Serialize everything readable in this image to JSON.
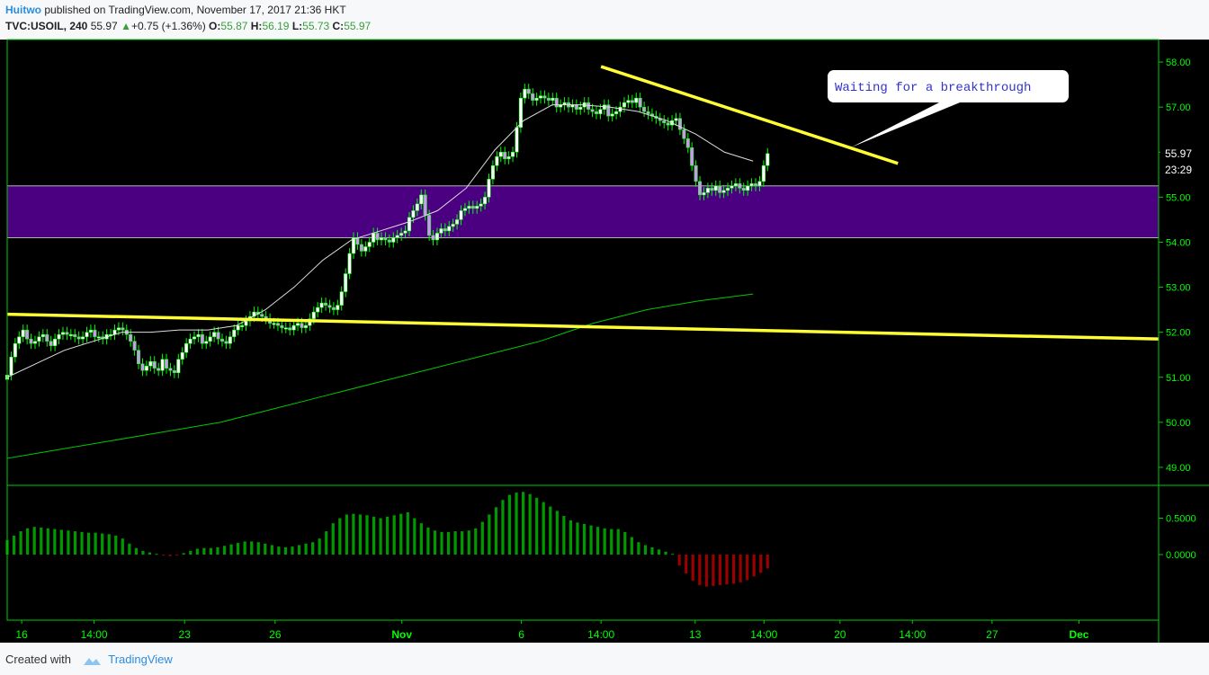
{
  "header": {
    "author": "Huitwo",
    "published_text": "published on TradingView.com, November 17, 2017 21:36 HKT",
    "symbol": "TVC:USOIL, 240",
    "last": "55.97",
    "change": "+0.75 (+1.36%)",
    "open_label": "O:",
    "open": "55.87",
    "high_label": "H:",
    "high": "56.19",
    "low_label": "L:",
    "low": "55.73",
    "close_label": "C:",
    "close": "55.97"
  },
  "footer": {
    "created_with": "Created with",
    "brand": "TradingView"
  },
  "colors": {
    "background": "#000000",
    "frame": "#00cc00",
    "axis_text": "#00ff00",
    "zone": "#4b0082",
    "trendline": "#ffff33",
    "ma_fast": "#dddddd",
    "ma_slow": "#00c800",
    "hist_pos": "#009900",
    "hist_neg": "#990000",
    "bull": "#ffffff",
    "bear": "#cc99ee"
  },
  "chart_data": [
    {
      "type": "candlestick",
      "ylim": [
        48.6,
        58.5
      ],
      "yticks": [
        49,
        50,
        51,
        52,
        53,
        54,
        55,
        56,
        57,
        58
      ],
      "ytick_labels": [
        "49.00",
        "50.00",
        "51.00",
        "52.00",
        "53.00",
        "54.00",
        "55.00",
        "56.00",
        "57.00",
        "58.00"
      ],
      "xtick_labels": [
        "16",
        "14:00",
        "23",
        "26",
        "Nov",
        "6",
        "14:00",
        "13",
        "14:00",
        "20",
        "14:00",
        "27",
        "Dec"
      ],
      "xtick_pos": [
        0,
        20,
        45,
        70,
        105,
        138,
        160,
        186,
        205,
        226,
        246,
        268,
        292
      ],
      "xlim": [
        -4,
        314
      ],
      "close_series": [
        51.05,
        51.45,
        51.75,
        51.9,
        52.05,
        51.85,
        51.75,
        51.8,
        51.9,
        51.95,
        51.8,
        51.7,
        51.85,
        51.95,
        52.0,
        51.95,
        51.95,
        51.9,
        51.85,
        51.9,
        52.0,
        52.05,
        51.9,
        51.9,
        51.85,
        51.95,
        51.95,
        52.05,
        52.1,
        52.05,
        51.95,
        51.8,
        51.6,
        51.3,
        51.15,
        51.25,
        51.35,
        51.2,
        51.15,
        51.4,
        51.2,
        51.15,
        51.1,
        51.4,
        51.55,
        51.75,
        51.85,
        51.9,
        51.95,
        51.75,
        51.8,
        51.9,
        52.0,
        51.85,
        51.8,
        51.75,
        51.9,
        52.05,
        52.15,
        52.15,
        52.25,
        52.35,
        52.45,
        52.4,
        52.35,
        52.3,
        52.2,
        52.2,
        52.15,
        52.1,
        52.1,
        52.05,
        52.15,
        52.2,
        52.1,
        52.15,
        52.3,
        52.45,
        52.55,
        52.65,
        52.6,
        52.55,
        52.5,
        52.6,
        52.9,
        53.3,
        53.75,
        54.1,
        53.95,
        53.8,
        53.9,
        54.0,
        54.2,
        54.05,
        54.1,
        54.05,
        54.0,
        54.1,
        54.15,
        54.2,
        54.25,
        54.55,
        54.7,
        54.85,
        55.05,
        54.6,
        54.15,
        54.05,
        54.2,
        54.3,
        54.25,
        54.35,
        54.4,
        54.5,
        54.7,
        54.75,
        54.8,
        54.75,
        54.8,
        54.85,
        55.0,
        55.4,
        55.7,
        55.9,
        56.0,
        55.85,
        55.9,
        56.0,
        56.55,
        57.2,
        57.4,
        57.3,
        57.15,
        57.2,
        57.25,
        57.2,
        57.15,
        57.2,
        57.0,
        57.05,
        57.1,
        57.0,
        57.05,
        56.95,
        57.0,
        57.1,
        56.95,
        56.9,
        56.85,
        56.95,
        57.05,
        56.8,
        56.85,
        56.9,
        57.0,
        57.1,
        57.15,
        57.1,
        57.2,
        57.0,
        56.9,
        56.85,
        56.8,
        56.75,
        56.7,
        56.65,
        56.6,
        56.7,
        56.75,
        56.5,
        56.3,
        56.1,
        55.7,
        55.35,
        55.05,
        55.1,
        55.2,
        55.15,
        55.25,
        55.1,
        55.15,
        55.2,
        55.25,
        55.3,
        55.2,
        55.15,
        55.25,
        55.3,
        55.25,
        55.35,
        55.7,
        55.97
      ],
      "ma_fast": [
        51.0,
        51.3,
        51.6,
        51.8,
        52.0,
        52.0,
        52.05,
        52.05,
        52.15,
        52.5,
        53.0,
        53.6,
        54.05,
        54.25,
        54.45,
        54.7,
        55.2,
        56.05,
        56.7,
        57.05,
        57.05,
        57.0,
        56.9,
        56.7,
        56.4,
        56.0,
        55.8
      ],
      "ma_slow": [
        49.2,
        49.4,
        49.6,
        49.8,
        50.0,
        50.3,
        50.6,
        50.9,
        51.2,
        51.5,
        51.8,
        52.2,
        52.5,
        52.7,
        52.85
      ],
      "zone": {
        "low": 54.1,
        "high": 55.25
      },
      "trendlines": [
        {
          "x1": -4,
          "y1": 52.4,
          "x2": 314,
          "y2": 51.85
        },
        {
          "x1": 160,
          "y1": 57.9,
          "x2": 242,
          "y2": 55.75
        }
      ],
      "last_price_label": "55.97",
      "countdown_label": "23:29",
      "annotation": "Waiting for a breakthrough"
    },
    {
      "type": "histogram",
      "ylim": [
        -0.9,
        0.95
      ],
      "yticks": [
        0,
        0.5
      ],
      "ytick_labels": [
        "0.0000",
        "0.5000"
      ],
      "values": [
        0.2,
        0.26,
        0.32,
        0.36,
        0.38,
        0.37,
        0.36,
        0.35,
        0.34,
        0.33,
        0.32,
        0.31,
        0.3,
        0.3,
        0.29,
        0.28,
        0.26,
        0.22,
        0.15,
        0.09,
        0.05,
        0.03,
        0.01,
        -0.01,
        -0.02,
        -0.01,
        0.02,
        0.05,
        0.08,
        0.09,
        0.09,
        0.1,
        0.12,
        0.14,
        0.16,
        0.18,
        0.18,
        0.17,
        0.15,
        0.13,
        0.11,
        0.1,
        0.11,
        0.13,
        0.15,
        0.17,
        0.22,
        0.32,
        0.43,
        0.5,
        0.55,
        0.56,
        0.55,
        0.54,
        0.52,
        0.5,
        0.52,
        0.54,
        0.56,
        0.58,
        0.5,
        0.43,
        0.37,
        0.33,
        0.31,
        0.31,
        0.32,
        0.32,
        0.33,
        0.36,
        0.45,
        0.55,
        0.65,
        0.75,
        0.82,
        0.85,
        0.86,
        0.83,
        0.78,
        0.72,
        0.66,
        0.6,
        0.53,
        0.47,
        0.44,
        0.42,
        0.4,
        0.38,
        0.36,
        0.35,
        0.35,
        0.31,
        0.24,
        0.17,
        0.13,
        0.1,
        0.07,
        0.04,
        0.01,
        -0.15,
        -0.26,
        -0.36,
        -0.42,
        -0.44,
        -0.43,
        -0.42,
        -0.41,
        -0.4,
        -0.38,
        -0.35,
        -0.3,
        -0.25,
        -0.19
      ]
    }
  ]
}
